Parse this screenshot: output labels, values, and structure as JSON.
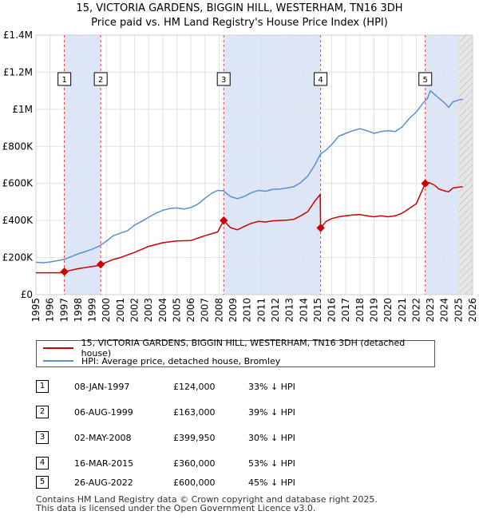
{
  "header": {
    "title_line1": "15, VICTORIA GARDENS, BIGGIN HILL, WESTERHAM, TN16 3DH",
    "title_line2": "Price paid vs. HM Land Registry's House Price Index (HPI)"
  },
  "legend": {
    "property_label": "15, VICTORIA GARDENS, BIGGIN HILL, WESTERHAM, TN16 3DH (detached house)",
    "hpi_label": "HPI: Average price, detached house, Bromley"
  },
  "sales": [
    {
      "num": "1",
      "date": "08-JAN-1997",
      "price": "£124,000",
      "hpi": "33% ↓ HPI"
    },
    {
      "num": "2",
      "date": "06-AUG-1999",
      "price": "£163,000",
      "hpi": "39% ↓ HPI"
    },
    {
      "num": "3",
      "date": "02-MAY-2008",
      "price": "£399,950",
      "hpi": "30% ↓ HPI"
    },
    {
      "num": "4",
      "date": "16-MAR-2015",
      "price": "£360,000",
      "hpi": "53% ↓ HPI"
    },
    {
      "num": "5",
      "date": "26-AUG-2022",
      "price": "£600,000",
      "hpi": "45% ↓ HPI"
    }
  ],
  "footer": {
    "line1": "Contains HM Land Registry data © Crown copyright and database right 2025.",
    "line2": "This data is licensed under the Open Government Licence v3.0."
  },
  "chart_data": {
    "type": "line",
    "title": "15, VICTORIA GARDENS, BIGGIN HILL, WESTERHAM, TN16 3DH",
    "subtitle": "Price paid vs. HM Land Registry's House Price Index (HPI)",
    "xlabel": "",
    "ylabel": "",
    "xlim": [
      1995,
      2026
    ],
    "ylim": [
      0,
      1400000
    ],
    "x_ticks": [
      1995,
      1996,
      1997,
      1998,
      1999,
      2000,
      2001,
      2002,
      2003,
      2004,
      2005,
      2006,
      2007,
      2008,
      2009,
      2010,
      2011,
      2012,
      2013,
      2014,
      2015,
      2016,
      2017,
      2018,
      2019,
      2020,
      2021,
      2022,
      2023,
      2024,
      2025,
      2026
    ],
    "y_ticks": [
      0,
      200000,
      400000,
      600000,
      800000,
      1000000,
      1200000,
      1400000
    ],
    "y_tick_labels": [
      "£0",
      "£200K",
      "£400K",
      "£600K",
      "£800K",
      "£1M",
      "£1.2M",
      "£1.4M"
    ],
    "grid": true,
    "colors": {
      "property": "#cc0000",
      "hpi": "#5b8fd0",
      "shade": "#dde6f7",
      "vline": "#dd4444",
      "future": "#e6e6e6"
    },
    "series": [
      {
        "name": "HPI: Average price, detached house, Bromley",
        "x": [
          1995.0,
          1995.5,
          1996.0,
          1996.5,
          1997.0,
          1997.5,
          1998.0,
          1998.5,
          1999.0,
          1999.5,
          2000.0,
          2000.5,
          2001.0,
          2001.5,
          2002.0,
          2002.5,
          2003.0,
          2003.5,
          2004.0,
          2004.5,
          2005.0,
          2005.5,
          2006.0,
          2006.5,
          2007.0,
          2007.5,
          2007.9,
          2008.3,
          2008.8,
          2009.3,
          2009.8,
          2010.3,
          2010.8,
          2011.3,
          2011.8,
          2012.3,
          2012.8,
          2013.3,
          2013.8,
          2014.3,
          2014.8,
          2015.2,
          2015.6,
          2016.0,
          2016.5,
          2017.0,
          2017.5,
          2018.0,
          2018.5,
          2019.0,
          2019.5,
          2020.0,
          2020.5,
          2021.0,
          2021.5,
          2022.0,
          2022.5,
          2022.8,
          2023.0,
          2023.3,
          2023.6,
          2024.0,
          2024.3,
          2024.6,
          2025.0,
          2025.3
        ],
        "values": [
          175000,
          172000,
          176000,
          183000,
          190000,
          205000,
          220000,
          232000,
          245000,
          262000,
          288000,
          318000,
          332000,
          345000,
          375000,
          395000,
          418000,
          438000,
          455000,
          465000,
          468000,
          462000,
          470000,
          488000,
          520000,
          548000,
          562000,
          560000,
          530000,
          518000,
          530000,
          550000,
          562000,
          558000,
          568000,
          570000,
          575000,
          582000,
          605000,
          640000,
          700000,
          758000,
          780000,
          810000,
          855000,
          870000,
          885000,
          895000,
          885000,
          870000,
          880000,
          885000,
          880000,
          905000,
          950000,
          985000,
          1035000,
          1060000,
          1100000,
          1080000,
          1060000,
          1035000,
          1010000,
          1040000,
          1050000,
          1055000
        ]
      },
      {
        "name": "15, VICTORIA GARDENS, BIGGIN HILL, WESTERHAM, TN16 3DH (detached house)",
        "x": [
          1995.0,
          1996.0,
          1997.0,
          1997.02,
          1998.0,
          1999.0,
          1999.6,
          1999.62,
          2000.5,
          2001.0,
          2002.0,
          2003.0,
          2004.0,
          2005.0,
          2006.0,
          2007.0,
          2007.9,
          2008.33,
          2008.8,
          2009.3,
          2009.8,
          2010.3,
          2010.8,
          2011.3,
          2011.8,
          2012.3,
          2012.8,
          2013.3,
          2013.8,
          2014.3,
          2014.8,
          2015.18,
          2015.21,
          2015.6,
          2016.0,
          2016.5,
          2017.0,
          2017.5,
          2018.0,
          2018.5,
          2019.0,
          2019.5,
          2020.0,
          2020.5,
          2021.0,
          2021.5,
          2022.0,
          2022.64,
          2022.9,
          2023.3,
          2023.6,
          2024.0,
          2024.3,
          2024.6,
          2025.0,
          2025.3
        ],
        "values": [
          118000,
          118000,
          118000,
          124000,
          140000,
          152000,
          158000,
          163000,
          190000,
          200000,
          228000,
          260000,
          280000,
          290000,
          292000,
          318000,
          338000,
          399950,
          362000,
          350000,
          368000,
          385000,
          395000,
          392000,
          398000,
          400000,
          402000,
          406000,
          425000,
          448000,
          505000,
          540000,
          360000,
          395000,
          410000,
          420000,
          425000,
          430000,
          432000,
          425000,
          420000,
          425000,
          420000,
          425000,
          440000,
          465000,
          490000,
          600000,
          605000,
          590000,
          570000,
          560000,
          555000,
          575000,
          580000,
          582000
        ]
      }
    ],
    "sales_markers": [
      {
        "label": "1",
        "x": 1997.02,
        "y": 124000
      },
      {
        "label": "2",
        "x": 1999.6,
        "y": 163000
      },
      {
        "label": "3",
        "x": 2008.33,
        "y": 399950
      },
      {
        "label": "4",
        "x": 2015.21,
        "y": 360000
      },
      {
        "label": "5",
        "x": 2022.64,
        "y": 600000
      }
    ],
    "future_from": 2025.0
  }
}
